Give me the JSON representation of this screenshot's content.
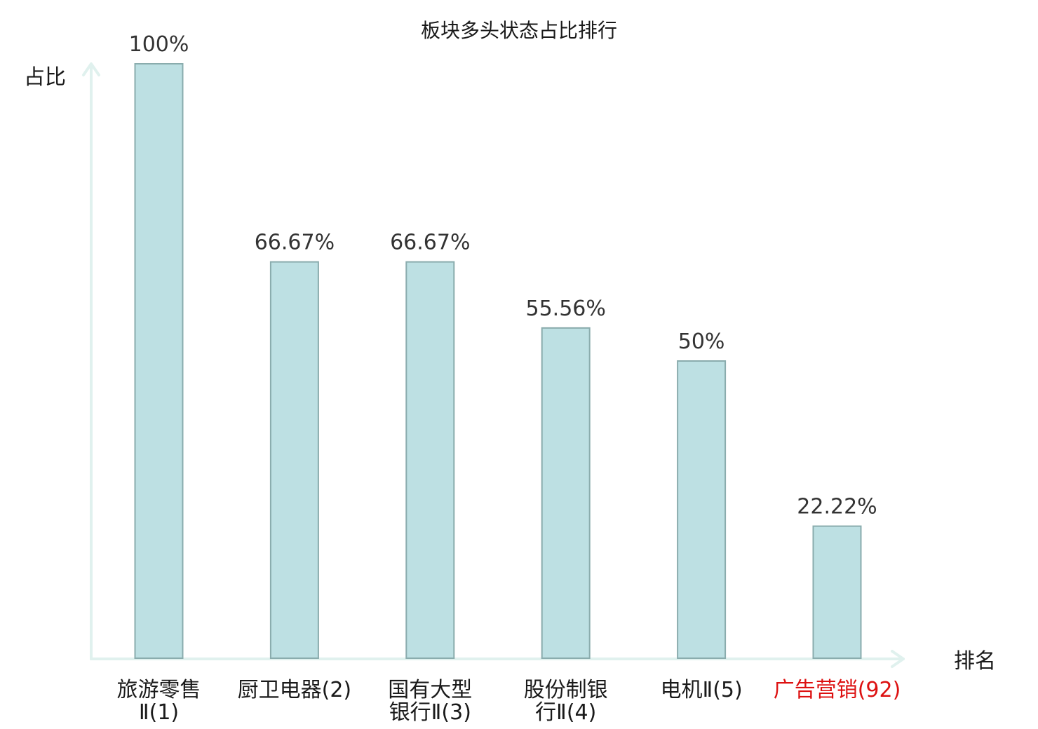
{
  "chart_data": {
    "type": "bar",
    "title": "板块多头状态占比排行",
    "ylabel": "占比",
    "xlabel": "排名",
    "ylim": [
      0,
      100
    ],
    "value_suffix": "%",
    "categories": [
      {
        "lines": [
          "旅游零售",
          "Ⅱ(1)"
        ]
      },
      {
        "lines": [
          "厨卫电器(2)"
        ]
      },
      {
        "lines": [
          "国有大型",
          "银行Ⅱ(3)"
        ]
      },
      {
        "lines": [
          "股份制银",
          "行Ⅱ(4)"
        ]
      },
      {
        "lines": [
          "电机Ⅱ(5)"
        ]
      },
      {
        "lines": [
          "广告营销(92)"
        ],
        "highlight": true
      }
    ],
    "values": [
      100,
      66.67,
      66.67,
      55.56,
      50,
      22.22
    ],
    "value_labels": [
      "100%",
      "66.67%",
      "66.67%",
      "55.56%",
      "50%",
      "22.22%"
    ],
    "colors": {
      "bar_fill": "#bde0e3",
      "bar_stroke": "#8aacad",
      "axis": "#e0f1ee",
      "highlight_text": "#dd1111"
    },
    "grid": false
  }
}
